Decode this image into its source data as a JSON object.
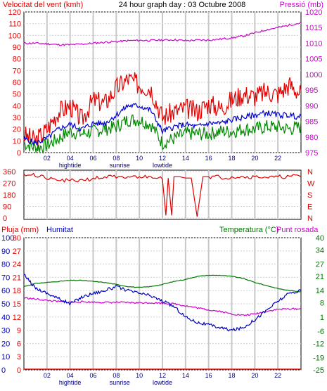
{
  "colors": {
    "wind_gust": "#e00000",
    "wind_avg": "#0000d0",
    "wind_min": "#008800",
    "pressure": "#d000d0",
    "direction": "#e00000",
    "humidity": "#0000c0",
    "temperature": "#007700",
    "dewpoint": "#d000d0",
    "rain": "#e00000"
  },
  "chart_data": [
    {
      "type": "line",
      "title": "24 hour graph day : 03 Octubre 2008",
      "left_label": "Velocitat del vent (kmh)",
      "right_label": "Pressió (mb)",
      "x_ticks": [
        "02",
        "04",
        "06",
        "08",
        "10",
        "12",
        "14",
        "16",
        "18",
        "20",
        "22"
      ],
      "x_annotations": [
        "hightide",
        "sunrise",
        "lowtide"
      ],
      "ylim_left": [
        0,
        120
      ],
      "yticks_left": [
        0,
        10,
        20,
        30,
        40,
        50,
        60,
        70,
        80,
        90,
        100,
        110,
        120
      ],
      "ylim_right": [
        975,
        1020
      ],
      "yticks_right": [
        975,
        980,
        985,
        990,
        995,
        1000,
        1005,
        1010,
        1015,
        1020
      ],
      "grid": true,
      "series": [
        {
          "name": "wind_gust",
          "axis": "left",
          "x": [
            0,
            1,
            2,
            3,
            4,
            5,
            6,
            7,
            8,
            9,
            10,
            11,
            12,
            13,
            14,
            15,
            16,
            17,
            18,
            19,
            20,
            21,
            22,
            23,
            24
          ],
          "y": [
            15,
            10,
            20,
            35,
            40,
            28,
            45,
            42,
            55,
            63,
            58,
            55,
            30,
            35,
            38,
            35,
            42,
            38,
            45,
            50,
            48,
            52,
            50,
            58,
            50
          ]
        },
        {
          "name": "wind_avg",
          "axis": "left",
          "x": [
            0,
            1,
            2,
            3,
            4,
            5,
            6,
            7,
            8,
            9,
            10,
            11,
            12,
            13,
            14,
            15,
            16,
            17,
            18,
            19,
            20,
            21,
            22,
            23,
            24
          ],
          "y": [
            12,
            8,
            12,
            20,
            24,
            20,
            25,
            25,
            32,
            40,
            40,
            36,
            18,
            22,
            24,
            22,
            25,
            25,
            28,
            30,
            32,
            34,
            32,
            32,
            30
          ]
        },
        {
          "name": "wind_min",
          "axis": "left",
          "x": [
            0,
            1,
            2,
            3,
            4,
            5,
            6,
            7,
            8,
            9,
            10,
            11,
            12,
            13,
            14,
            15,
            16,
            17,
            18,
            19,
            20,
            21,
            22,
            23,
            24
          ],
          "y": [
            8,
            4,
            6,
            12,
            18,
            16,
            18,
            20,
            22,
            28,
            28,
            24,
            8,
            12,
            16,
            16,
            16,
            18,
            18,
            20,
            20,
            22,
            22,
            20,
            22
          ]
        },
        {
          "name": "pressure",
          "axis": "right",
          "x": [
            0,
            1,
            2,
            3,
            4,
            5,
            6,
            7,
            8,
            9,
            10,
            11,
            12,
            13,
            14,
            15,
            16,
            17,
            18,
            19,
            20,
            21,
            22,
            23,
            24
          ],
          "y": [
            1010,
            1010,
            1009.8,
            1009.5,
            1009.5,
            1009.7,
            1010,
            1010.3,
            1010.5,
            1010.8,
            1010.9,
            1010.9,
            1011,
            1011.1,
            1010.8,
            1011,
            1011,
            1011.3,
            1011.7,
            1012.3,
            1013.3,
            1014.3,
            1015,
            1015.8,
            1016.5
          ]
        }
      ]
    },
    {
      "type": "line",
      "right_label": "N W S E N",
      "direction_letters": [
        "N",
        "W",
        "S",
        "E",
        "N"
      ],
      "ylim": [
        0,
        360
      ],
      "yticks": [
        0,
        90,
        180,
        270,
        360
      ],
      "grid": true,
      "series": [
        {
          "name": "direction",
          "x": [
            0,
            1,
            2,
            3,
            4,
            5,
            6,
            7,
            8,
            9,
            10,
            11,
            12,
            12.3,
            12.5,
            12.8,
            13,
            13.5,
            14,
            14.5,
            15,
            15.5,
            16,
            17,
            18,
            19,
            20,
            21,
            22,
            23,
            24
          ],
          "y": [
            340,
            320,
            300,
            290,
            290,
            300,
            310,
            320,
            310,
            320,
            320,
            320,
            300,
            20,
            310,
            20,
            320,
            320,
            310,
            310,
            10,
            320,
            320,
            315,
            320,
            320,
            320,
            315,
            320,
            325,
            320
          ]
        }
      ]
    },
    {
      "type": "line",
      "left_label": "Pluja (mm)",
      "left_label_2": "Humitat",
      "right_label": "Temperatura (°C)",
      "right_label_2": "Punt rosada",
      "x_ticks": [
        "02",
        "04",
        "06",
        "08",
        "10",
        "12",
        "14",
        "16",
        "18",
        "20",
        "22"
      ],
      "x_annotations": [
        "hightide",
        "sunrise",
        "lowtide"
      ],
      "ylim_left": [
        0,
        100
      ],
      "yticks_left": [
        0,
        10,
        20,
        30,
        40,
        50,
        60,
        70,
        80,
        90,
        100
      ],
      "yticks_left_alt": [
        0,
        3,
        6,
        9,
        12,
        15,
        18,
        21,
        24,
        27,
        30
      ],
      "ylim_right": [
        -25,
        40
      ],
      "yticks_right": [
        -25,
        -19,
        -12,
        -6,
        1,
        8,
        14,
        21,
        27,
        34,
        40
      ],
      "grid": true,
      "series": [
        {
          "name": "humidity",
          "axis": "left",
          "x": [
            0,
            1,
            2,
            3,
            4,
            5,
            6,
            7,
            8,
            9,
            10,
            11,
            12,
            13,
            14,
            15,
            16,
            17,
            18,
            19,
            20,
            21,
            22,
            23,
            24
          ],
          "y": [
            72,
            62,
            58,
            54,
            50,
            55,
            58,
            60,
            63,
            60,
            58,
            56,
            52,
            48,
            40,
            36,
            34,
            32,
            30,
            32,
            38,
            45,
            52,
            58,
            60
          ]
        },
        {
          "name": "temperature",
          "axis": "right",
          "x": [
            0,
            1,
            2,
            3,
            4,
            5,
            6,
            7,
            8,
            9,
            10,
            11,
            12,
            13,
            14,
            15,
            16,
            17,
            18,
            19,
            20,
            21,
            22,
            23,
            24
          ],
          "y": [
            16,
            17.5,
            18,
            18.5,
            19,
            19,
            18.5,
            18,
            17,
            16,
            15.5,
            16,
            17,
            18.5,
            19.5,
            21,
            21.5,
            21.5,
            21,
            20,
            18,
            16.5,
            15,
            14,
            13.5
          ]
        },
        {
          "name": "dewpoint",
          "axis": "right",
          "x": [
            0,
            1,
            2,
            3,
            4,
            5,
            6,
            7,
            8,
            9,
            10,
            11,
            12,
            13,
            14,
            15,
            16,
            17,
            18,
            19,
            20,
            21,
            22,
            23,
            24
          ],
          "y": [
            10.5,
            9.8,
            9.2,
            8.6,
            8.3,
            8.5,
            8.3,
            8.2,
            8.2,
            8.1,
            8,
            8,
            7.8,
            7.5,
            6.5,
            5.5,
            4.5,
            3.8,
            2.5,
            1.8,
            2.5,
            3.8,
            4.8,
            5,
            5
          ]
        },
        {
          "name": "rain",
          "axis": "left",
          "x": [
            0,
            24
          ],
          "y": [
            0,
            0
          ]
        }
      ]
    }
  ]
}
